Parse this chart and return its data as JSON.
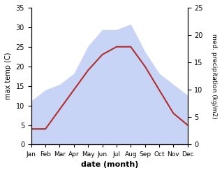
{
  "months": [
    "Jan",
    "Feb",
    "Mar",
    "Apr",
    "May",
    "Jun",
    "Jul",
    "Aug",
    "Sep",
    "Oct",
    "Nov",
    "Dec"
  ],
  "temperature": [
    4,
    4,
    9,
    14,
    19,
    23,
    25,
    25,
    20,
    14,
    8,
    5
  ],
  "precipitation": [
    8,
    10,
    11,
    13,
    18,
    21,
    21,
    22,
    17,
    13,
    11,
    9
  ],
  "temp_color": "#b03030",
  "precip_fill_color": "#c8d4f5",
  "left_ylim": [
    0,
    35
  ],
  "right_ylim": [
    0,
    25
  ],
  "left_yticks": [
    0,
    5,
    10,
    15,
    20,
    25,
    30,
    35
  ],
  "right_yticks": [
    0,
    5,
    10,
    15,
    20,
    25
  ],
  "xlabel": "date (month)",
  "ylabel_left": "max temp (C)",
  "ylabel_right": "med. precipitation (kg/m2)",
  "bg_color": "#ffffff"
}
